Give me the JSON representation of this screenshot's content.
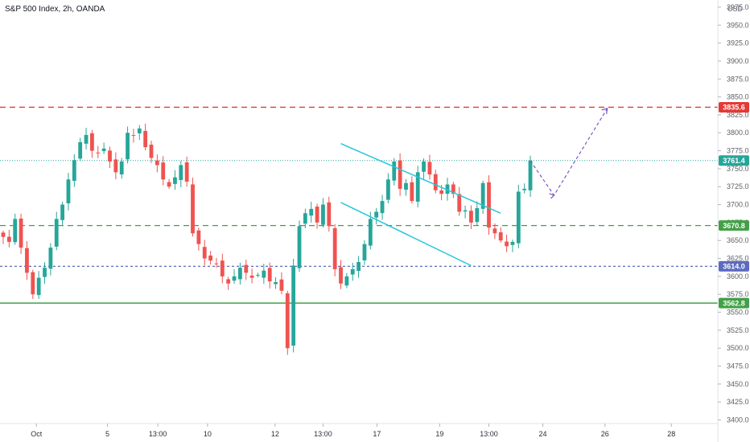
{
  "header": {
    "title": "S&P 500 Index, 2h, OANDA",
    "currency": "USD"
  },
  "colors": {
    "up": "#26a69a",
    "down": "#ef5350",
    "resistance": "#e53935",
    "support_green": "#43a047",
    "support_blue": "#5c6bc0",
    "channel": "#26c6da",
    "projection": "#7e57c2",
    "last_price": "#26a69a"
  },
  "chart_data": {
    "type": "candlestick",
    "y_axis": {
      "ylim": [
        3395,
        3985
      ],
      "ticks": [
        3975.0,
        3950.0,
        3925.0,
        3900.0,
        3875.0,
        3850.0,
        3825.0,
        3800.0,
        3775.0,
        3750.0,
        3725.0,
        3700.0,
        3675.0,
        3650.0,
        3625.0,
        3600.0,
        3575.0,
        3550.0,
        3525.0,
        3500.0,
        3475.0,
        3450.0,
        3425.0,
        3400.0
      ],
      "tick_labels": [
        "3975.0",
        "3950.0",
        "3925.0",
        "3900.0",
        "3875.0",
        "3850.0",
        "3825.0",
        "3800.0",
        "3775.0",
        "3750.0",
        "3725.0",
        "3700.0",
        "3675.0",
        "3650.0",
        "3625.0",
        "3600.0",
        "3575.0",
        "3550.0",
        "3525.0",
        "3500.0",
        "3475.0",
        "3450.0",
        "3425.0",
        "3400.0"
      ]
    },
    "x_axis": {
      "labels": [
        "Oct",
        "5",
        "13:00",
        "10",
        "12",
        "13:00",
        "17",
        "19",
        "13:00",
        "24",
        "26",
        "28"
      ]
    },
    "price_path": [
      3655,
      3648,
      3680,
      3640,
      3605,
      3575,
      3598,
      3612,
      3640,
      3680,
      3700,
      3735,
      3762,
      3787,
      3797,
      3775,
      3772,
      3778,
      3760,
      3745,
      3760,
      3800,
      3796,
      3806,
      3780,
      3765,
      3755,
      3735,
      3725,
      3738,
      3755,
      3732,
      3660,
      3645,
      3625,
      3622,
      3618,
      3600,
      3590,
      3600,
      3612,
      3605,
      3598,
      3602,
      3608,
      3593,
      3592,
      3580,
      3500,
      3615,
      3670,
      3688,
      3694,
      3675,
      3700,
      3670,
      3610,
      3590,
      3600,
      3610,
      3620,
      3645,
      3680,
      3690,
      3705,
      3735,
      3760,
      3722,
      3730,
      3705,
      3745,
      3760,
      3742,
      3720,
      3715,
      3728,
      3715,
      3690,
      3692,
      3675,
      3695,
      3730,
      3668,
      3660,
      3650,
      3642,
      3648,
      3718,
      3722,
      3761.4
    ],
    "levels": [
      {
        "name": "resistance",
        "value": 3835.6,
        "label": "3835.6",
        "style": "dashed"
      },
      {
        "name": "last-price",
        "value": 3761.4,
        "label": "3761.4",
        "style": "dotted"
      },
      {
        "name": "support-upper",
        "value": 3670.8,
        "label": "3670.8",
        "style": "dashed"
      },
      {
        "name": "support-mid",
        "value": 3614.0,
        "label": "3614.0",
        "style": "dashed"
      },
      {
        "name": "support-lower",
        "value": 3562.8,
        "label": "3562.8",
        "style": "solid"
      }
    ],
    "channel": {
      "upper": {
        "start_bar": 57,
        "start_value": 3785,
        "end_bar": 84,
        "end_value": 3688
      },
      "lower": {
        "start_bar": 57,
        "start_value": 3703,
        "end_bar": 79,
        "end_value": 3615
      }
    },
    "projection": [
      [
        89,
        3761
      ],
      [
        93,
        3713
      ],
      [
        102,
        3834
      ]
    ]
  }
}
